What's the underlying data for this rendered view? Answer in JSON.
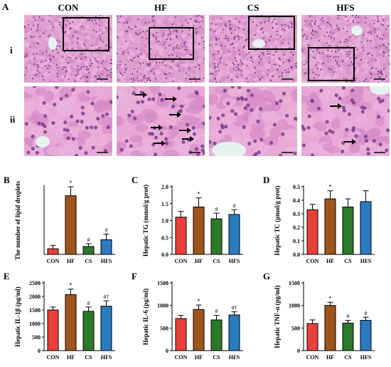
{
  "figure_label": "A",
  "columns": [
    "CON",
    "HF",
    "CS",
    "HFS"
  ],
  "rows": [
    "i",
    "ii"
  ],
  "panel_letters": [
    "B",
    "C",
    "D",
    "E",
    "F",
    "G"
  ],
  "colors": {
    "CON": "#e8403a",
    "HF": "#a0541c",
    "CS": "#2b7a2a",
    "HFS": "#2a7bc0"
  },
  "chart_data": [
    {
      "panel": "B",
      "type": "bar",
      "categories": [
        "CON",
        "HF",
        "CS",
        "HFS"
      ],
      "values": [
        5,
        52,
        7,
        13
      ],
      "errors": [
        3,
        8,
        2.5,
        5
      ],
      "marks": [
        "",
        "*",
        "#",
        "#"
      ],
      "ylabel": "The number of lipid droplets",
      "ylim": [
        0,
        60
      ],
      "yticks": [],
      "grid": false
    },
    {
      "panel": "C",
      "type": "bar",
      "categories": [
        "CON",
        "HF",
        "CS",
        "HFS"
      ],
      "values": [
        1.1,
        1.4,
        1.05,
        1.18
      ],
      "errors": [
        0.17,
        0.27,
        0.17,
        0.14
      ],
      "marks": [
        "",
        "*",
        "#",
        "#"
      ],
      "ylabel": "Hepatic TG (mmol/g prot)",
      "ylim": [
        0,
        2.0
      ],
      "yticks": [
        "0.0",
        "0.5",
        "1.0",
        "1.5",
        "2.0"
      ],
      "grid": false
    },
    {
      "panel": "D",
      "type": "bar",
      "categories": [
        "CON",
        "HF",
        "CS",
        "HFS"
      ],
      "values": [
        0.33,
        0.41,
        0.35,
        0.39
      ],
      "errors": [
        0.04,
        0.06,
        0.06,
        0.08
      ],
      "marks": [
        "",
        "*",
        "",
        ""
      ],
      "ylabel": "Hepatic TC (µmol/g prot)",
      "ylim": [
        0,
        0.5
      ],
      "yticks": [
        "0.0",
        "0.1",
        "0.2",
        "0.3",
        "0.4",
        "0.5"
      ],
      "grid": false
    },
    {
      "panel": "E",
      "type": "bar",
      "categories": [
        "CON",
        "HF",
        "CS",
        "HFS"
      ],
      "values": [
        1500,
        2070,
        1450,
        1640
      ],
      "errors": [
        110,
        200,
        160,
        200
      ],
      "marks": [
        "",
        "*",
        "#",
        "#†"
      ],
      "ylabel": "Hepatic IL-1β (pg/ml)",
      "ylim": [
        0,
        2500
      ],
      "yticks": [
        "0",
        "500",
        "1000",
        "1500",
        "2000",
        "2500"
      ],
      "grid": false
    },
    {
      "panel": "F",
      "type": "bar",
      "categories": [
        "CON",
        "HF",
        "CS",
        "HFS"
      ],
      "values": [
        710,
        910,
        680,
        790
      ],
      "errors": [
        70,
        100,
        100,
        70
      ],
      "marks": [
        "",
        "*",
        "#",
        "#†"
      ],
      "ylabel": "Hepatic IL-6 (pg/ml)",
      "ylim": [
        0,
        1500
      ],
      "yticks": [
        "0",
        "500",
        "1000",
        "1500"
      ],
      "grid": false
    },
    {
      "panel": "G",
      "type": "bar",
      "categories": [
        "CON",
        "HF",
        "CS",
        "HFS"
      ],
      "values": [
        600,
        1000,
        610,
        670
      ],
      "errors": [
        80,
        70,
        60,
        70
      ],
      "marks": [
        "",
        "*",
        "#",
        "#"
      ],
      "ylabel": "Hepatic TNF-α (pg/ml)",
      "ylim": [
        0,
        1500
      ],
      "yticks": [
        "0",
        "500",
        "1000",
        "1500"
      ],
      "grid": false
    }
  ]
}
